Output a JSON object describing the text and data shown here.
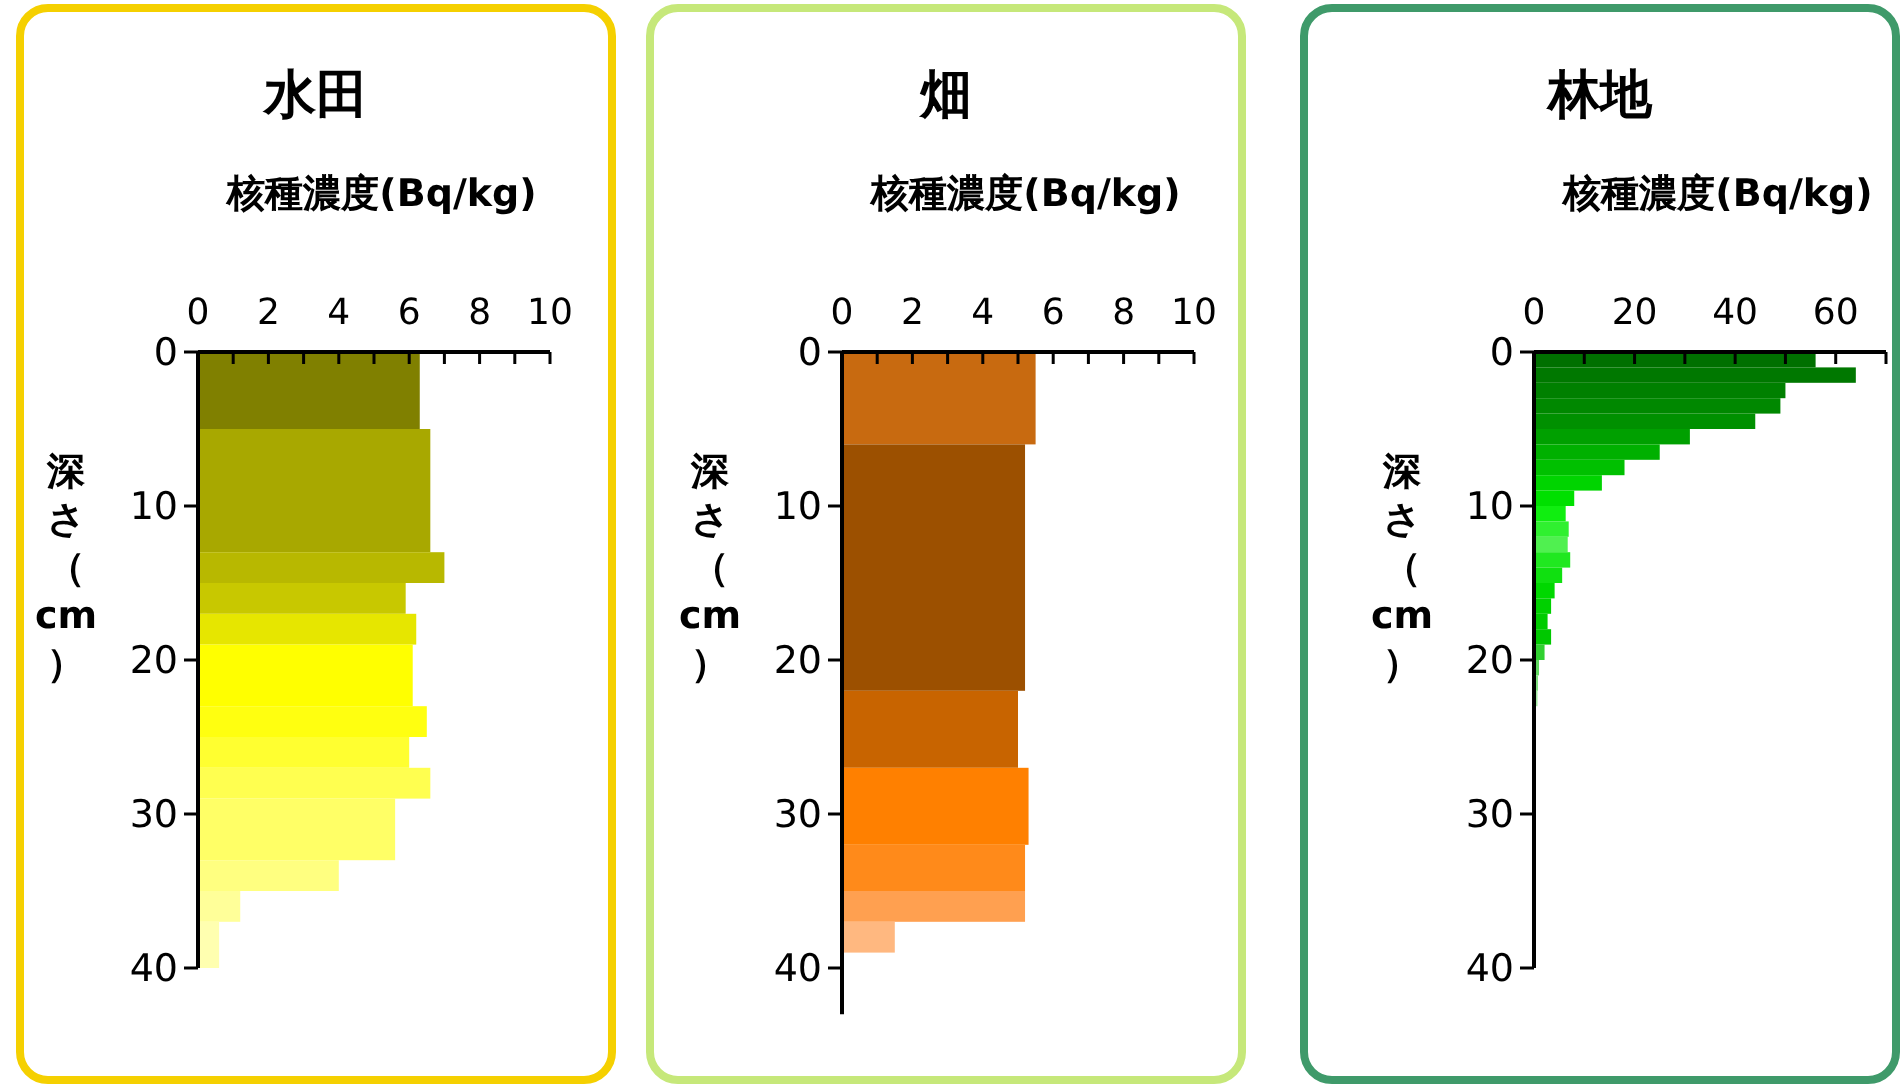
{
  "chart_data": [
    {
      "type": "histogram",
      "orientation": "horizontal",
      "title": "水田",
      "xlabel": "核種濃度(Bq/kg)",
      "ylabel": "深さ（cm）",
      "bins": [
        0,
        5,
        13,
        15,
        17,
        19,
        23,
        25,
        27,
        29,
        33,
        35,
        37,
        40
      ],
      "values": [
        6.3,
        6.6,
        7.0,
        5.9,
        6.2,
        6.1,
        6.5,
        6.0,
        6.6,
        5.6,
        4.0,
        1.2,
        0.6
      ],
      "colors": [
        "#808000",
        "#a8a800",
        "#b8b800",
        "#c8c800",
        "#e6e600",
        "#ffff00",
        "#ffff10",
        "#ffff30",
        "#ffff50",
        "#ffff66",
        "#ffff80",
        "#ffff99",
        "#ffffb0"
      ],
      "xlim": [
        0,
        10
      ],
      "xticks": [
        0,
        {
          "value": 1,
          "label": null
        },
        2,
        {
          "value": 3,
          "label": null
        },
        4,
        {
          "value": 5,
          "label": null
        },
        6,
        {
          "value": 7,
          "label": null
        },
        8,
        {
          "value": 9,
          "label": null
        },
        10
      ],
      "ylim": [
        40,
        0
      ],
      "yticks": [
        0,
        10,
        20,
        30,
        40
      ]
    },
    {
      "type": "histogram",
      "orientation": "horizontal",
      "title": "畑",
      "xlabel": "核種濃度(Bq/kg)",
      "ylabel": "深さ（cm）",
      "bins": [
        0,
        6,
        22,
        27,
        32,
        35,
        37,
        39
      ],
      "values": [
        5.5,
        5.2,
        5.0,
        5.3,
        5.2,
        5.2,
        1.5
      ],
      "colors": [
        "#c86a10",
        "#9c5000",
        "#c86400",
        "#ff8000",
        "#ff8a1a",
        "#ffa050",
        "#ffb880"
      ],
      "xlim": [
        0,
        10
      ],
      "xticks": [
        0,
        {
          "value": 1,
          "label": null
        },
        2,
        {
          "value": 3,
          "label": null
        },
        4,
        {
          "value": 5,
          "label": null
        },
        6,
        {
          "value": 7,
          "label": null
        },
        8,
        {
          "value": 9,
          "label": null
        },
        10
      ],
      "ylim": [
        43,
        0
      ],
      "yticks": [
        0,
        10,
        20,
        30,
        40
      ]
    },
    {
      "type": "histogram",
      "orientation": "horizontal",
      "title": "林地",
      "xlabel": "核種濃度(Bq/kg)",
      "ylabel": "深さ（cm）",
      "bins": [
        0,
        1,
        2,
        3,
        4,
        5,
        6,
        7,
        8,
        9,
        10,
        11,
        12,
        13,
        14,
        15,
        16,
        17,
        18,
        19,
        20,
        21,
        22,
        23
      ],
      "values": [
        56,
        64,
        50,
        49,
        44,
        31,
        25,
        18,
        13.5,
        8,
        6.3,
        6.9,
        6.7,
        7.2,
        5.6,
        4.1,
        3.4,
        2.7,
        3.4,
        2.1,
        1.0,
        0.8,
        0.7
      ],
      "colors": [
        "#007000",
        "#007800",
        "#008000",
        "#008800",
        "#009000",
        "#00a000",
        "#00b000",
        "#00c000",
        "#00d400",
        "#00e000",
        "#10ee10",
        "#30f030",
        "#50f050",
        "#20e820",
        "#10e010",
        "#00d800",
        "#00d000",
        "#00cc00",
        "#00c800",
        "#30d030",
        "#60d860",
        "#80e080",
        "#a0e8a0"
      ],
      "xlim": [
        0,
        70
      ],
      "xticks": [
        0,
        {
          "value": 10,
          "label": null
        },
        20,
        {
          "value": 30,
          "label": null
        },
        40,
        {
          "value": 50,
          "label": null
        },
        60,
        {
          "value": 70,
          "label": null
        }
      ],
      "ylim": [
        40,
        0
      ],
      "yticks": [
        0,
        10,
        20,
        30,
        40
      ]
    }
  ]
}
